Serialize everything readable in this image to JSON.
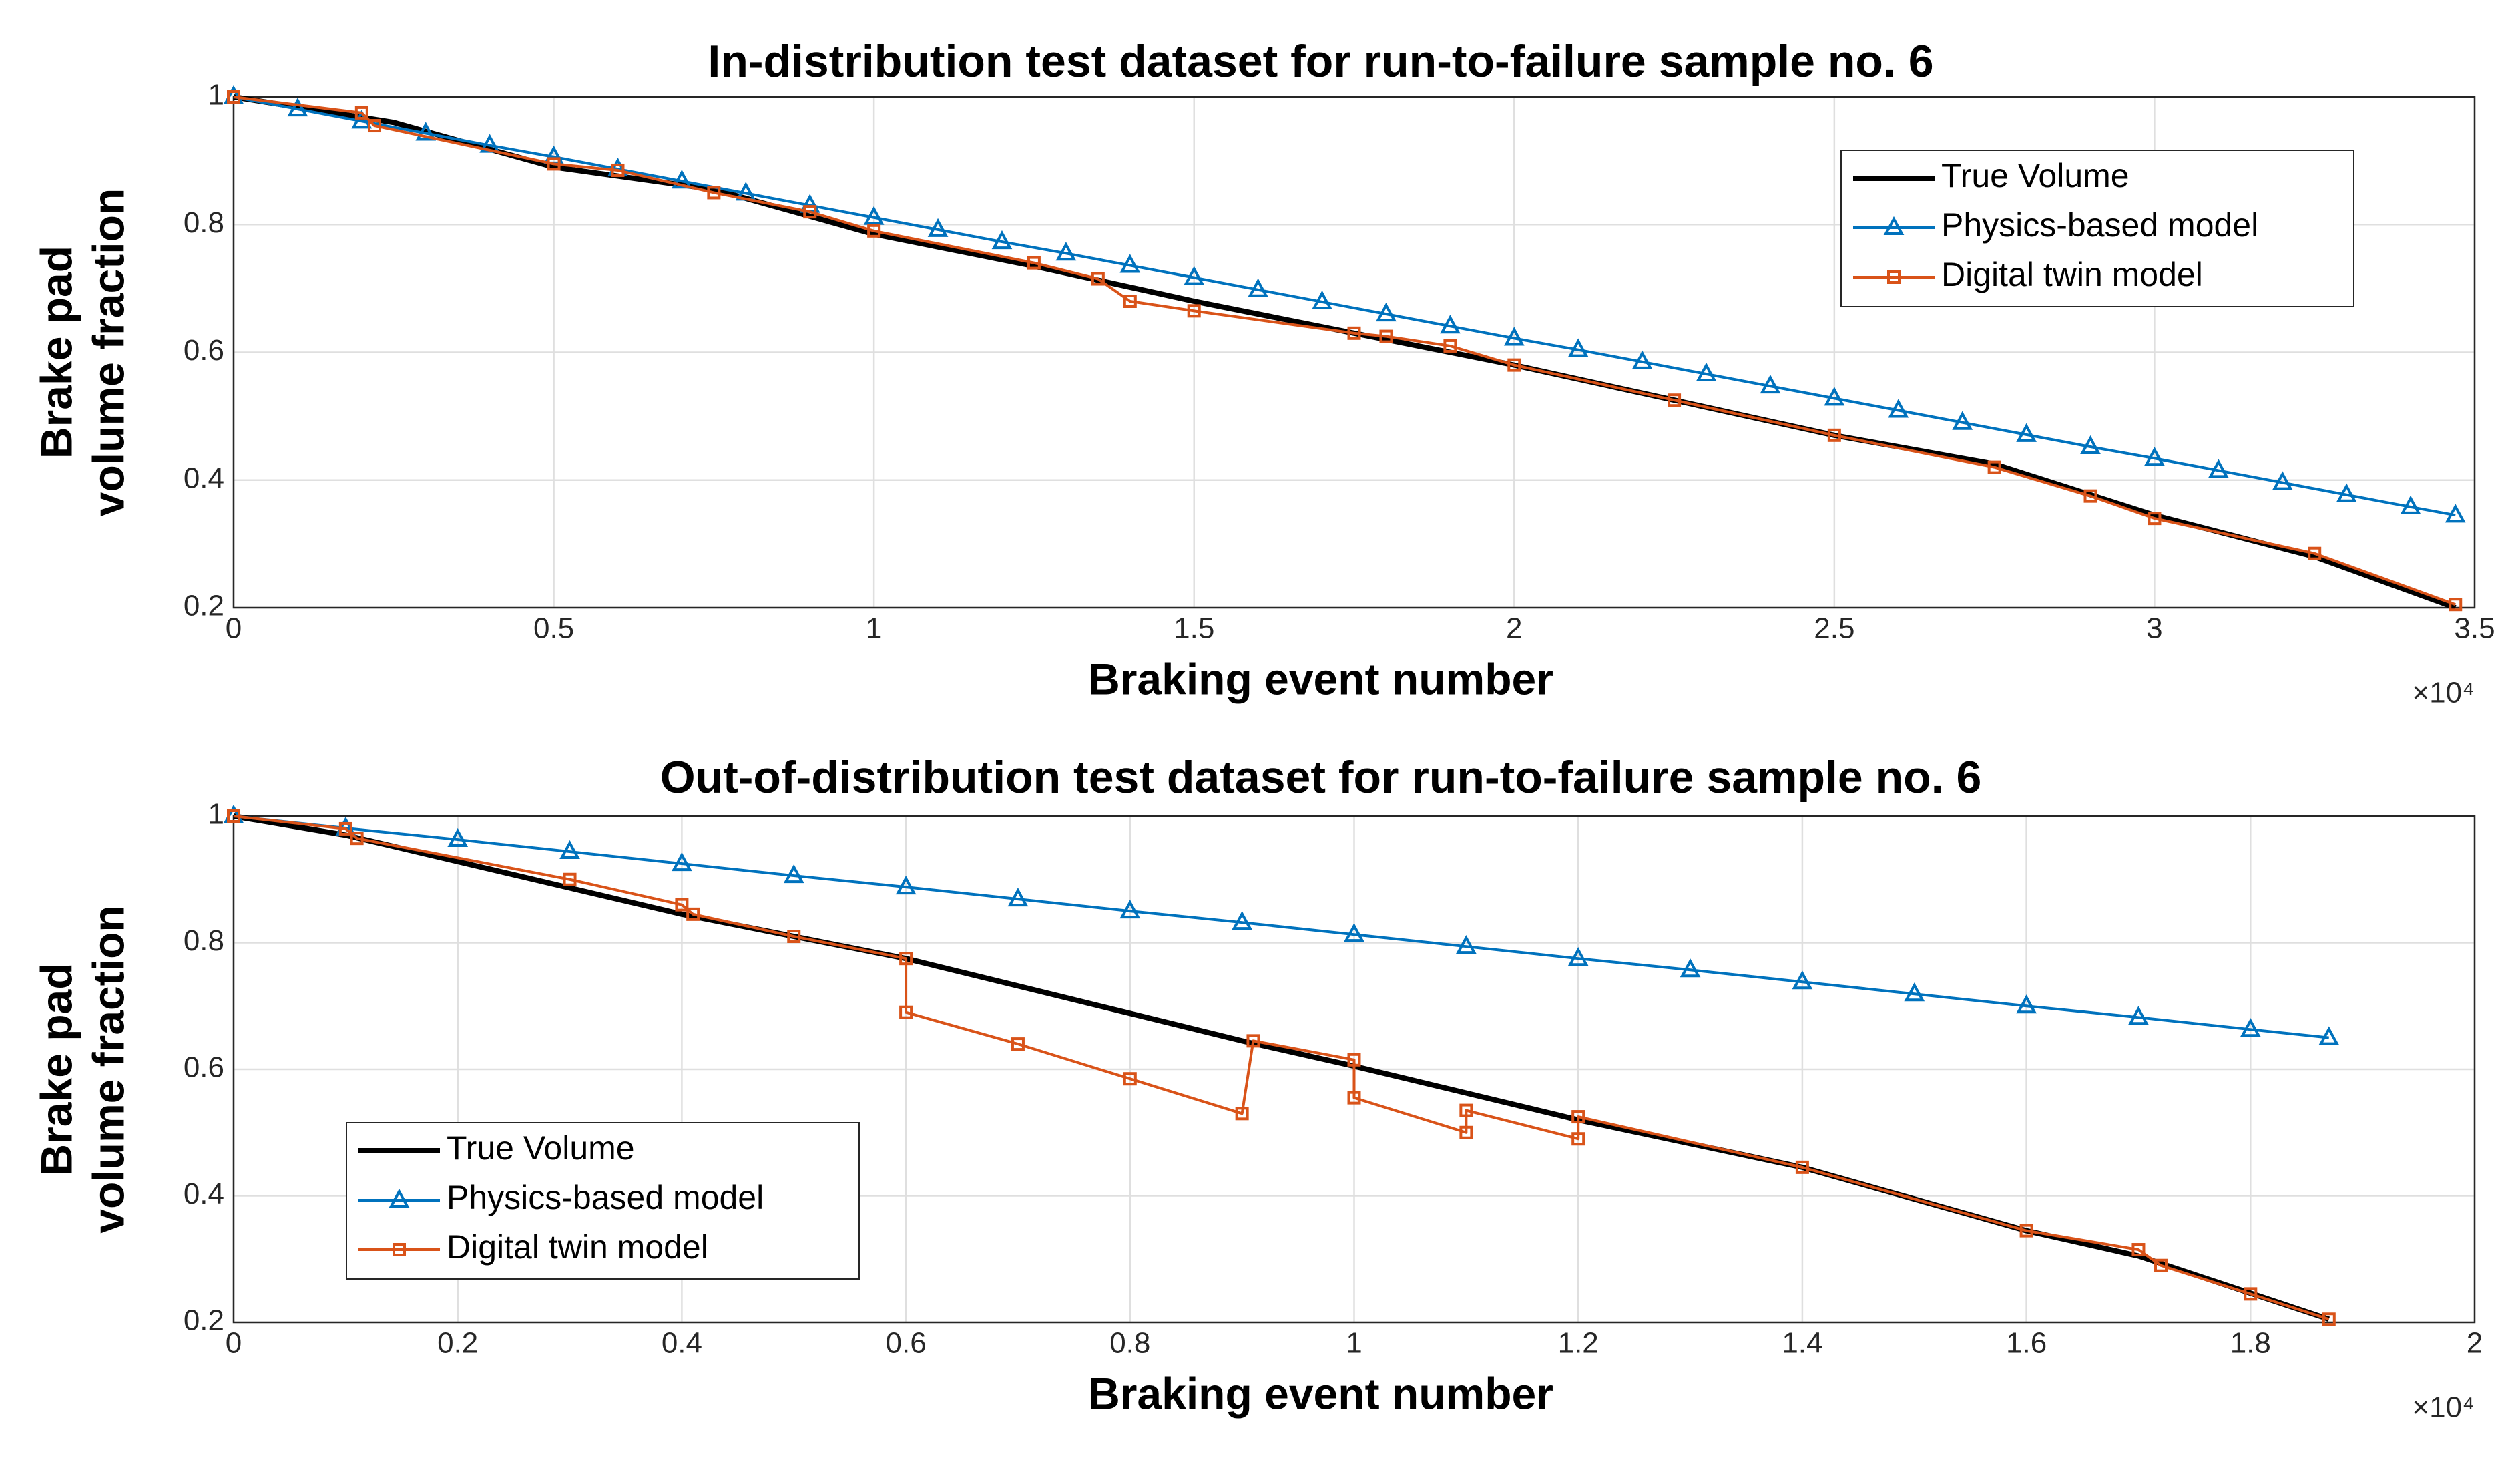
{
  "chart_data": [
    {
      "type": "line",
      "title": "In-distribution test dataset for run-to-failure sample no. 6",
      "xlabel": "Braking event number",
      "ylabel": [
        "Brake pad",
        "volume fraction"
      ],
      "x_multiplier": "×10⁴",
      "xlim": [
        0,
        3.5
      ],
      "xticks": [
        0,
        0.5,
        1,
        1.5,
        2,
        2.5,
        3,
        3.5
      ],
      "ylim": [
        0.2,
        1
      ],
      "yticks": [
        0.2,
        0.4,
        0.6,
        0.8,
        1
      ],
      "grid": true,
      "legend": "northeast",
      "series": [
        {
          "name": "True Volume",
          "color": "#000000",
          "marker": "none",
          "x": [
            0,
            0.25,
            0.5,
            0.75,
            1,
            1.25,
            1.5,
            1.75,
            2,
            2.25,
            2.5,
            2.75,
            3,
            3.25,
            3.47
          ],
          "values": [
            1,
            0.96,
            0.89,
            0.855,
            0.785,
            0.735,
            0.68,
            0.63,
            0.58,
            0.525,
            0.47,
            0.425,
            0.345,
            0.28,
            0.2
          ]
        },
        {
          "name": "Physics-based model",
          "color": "#0072bd",
          "marker": "triangle",
          "x": [
            0,
            0.1,
            0.2,
            0.3,
            0.4,
            0.5,
            0.6,
            0.7,
            0.8,
            0.9,
            1,
            1.1,
            1.2,
            1.3,
            1.4,
            1.5,
            1.6,
            1.7,
            1.8,
            1.9,
            2,
            2.1,
            2.2,
            2.3,
            2.4,
            2.5,
            2.6,
            2.7,
            2.8,
            2.9,
            3,
            3.1,
            3.2,
            3.3,
            3.4,
            3.47
          ],
          "values": [
            1,
            0.981,
            0.962,
            0.943,
            0.924,
            0.906,
            0.887,
            0.868,
            0.849,
            0.83,
            0.811,
            0.792,
            0.773,
            0.755,
            0.736,
            0.717,
            0.698,
            0.679,
            0.66,
            0.641,
            0.622,
            0.604,
            0.585,
            0.566,
            0.547,
            0.528,
            0.509,
            0.49,
            0.471,
            0.452,
            0.434,
            0.415,
            0.396,
            0.377,
            0.358,
            0.345
          ]
        },
        {
          "name": "Digital twin model",
          "color": "#d95319",
          "marker": "square",
          "x": [
            0,
            0.2,
            0.22,
            0.5,
            0.6,
            0.75,
            0.9,
            1,
            1.25,
            1.35,
            1.4,
            1.5,
            1.75,
            1.8,
            1.9,
            2,
            2.25,
            2.5,
            2.75,
            2.9,
            3,
            3.25,
            3.47
          ],
          "values": [
            1,
            0.975,
            0.955,
            0.895,
            0.885,
            0.85,
            0.82,
            0.79,
            0.74,
            0.715,
            0.68,
            0.665,
            0.63,
            0.625,
            0.61,
            0.58,
            0.525,
            0.47,
            0.42,
            0.375,
            0.34,
            0.285,
            0.205
          ]
        }
      ]
    },
    {
      "type": "line",
      "title": "Out-of-distribution test dataset for run-to-failure sample no. 6",
      "xlabel": "Braking event number",
      "ylabel": [
        "Brake pad",
        "volume fraction"
      ],
      "x_multiplier": "×10⁴",
      "xlim": [
        0,
        2
      ],
      "xticks": [
        0,
        0.2,
        0.4,
        0.6,
        0.8,
        1,
        1.2,
        1.4,
        1.6,
        1.8,
        2
      ],
      "ylim": [
        0.2,
        1
      ],
      "yticks": [
        0.2,
        0.4,
        0.6,
        0.8,
        1
      ],
      "grid": true,
      "legend": "southwest",
      "series": [
        {
          "name": "True Volume",
          "color": "#000000",
          "marker": "none",
          "x": [
            0,
            0.1,
            0.4,
            0.6,
            0.9,
            1,
            1.2,
            1.4,
            1.6,
            1.7,
            1.87
          ],
          "values": [
            1,
            0.97,
            0.845,
            0.775,
            0.645,
            0.605,
            0.52,
            0.445,
            0.345,
            0.305,
            0.205
          ]
        },
        {
          "name": "Physics-based model",
          "color": "#0072bd",
          "marker": "triangle",
          "x": [
            0,
            0.1,
            0.2,
            0.3,
            0.4,
            0.5,
            0.6,
            0.7,
            0.8,
            0.9,
            1,
            1.1,
            1.2,
            1.3,
            1.4,
            1.5,
            1.6,
            1.7,
            1.8,
            1.87
          ],
          "values": [
            1,
            0.981,
            0.963,
            0.944,
            0.925,
            0.906,
            0.888,
            0.869,
            0.85,
            0.832,
            0.813,
            0.794,
            0.775,
            0.757,
            0.738,
            0.719,
            0.7,
            0.682,
            0.663,
            0.65
          ]
        },
        {
          "name": "Digital twin model",
          "color": "#d95319",
          "marker": "square",
          "x": [
            0,
            0.1,
            0.11,
            0.3,
            0.4,
            0.41,
            0.5,
            0.6,
            0.6,
            0.7,
            0.8,
            0.9,
            0.91,
            1,
            1,
            1.1,
            1.1,
            1.2,
            1.2,
            1.4,
            1.6,
            1.7,
            1.72,
            1.8,
            1.87
          ],
          "values": [
            1,
            0.98,
            0.965,
            0.9,
            0.86,
            0.845,
            0.81,
            0.775,
            0.69,
            0.64,
            0.585,
            0.53,
            0.645,
            0.615,
            0.555,
            0.5,
            0.535,
            0.49,
            0.525,
            0.445,
            0.345,
            0.315,
            0.29,
            0.245,
            0.205
          ]
        }
      ]
    }
  ]
}
